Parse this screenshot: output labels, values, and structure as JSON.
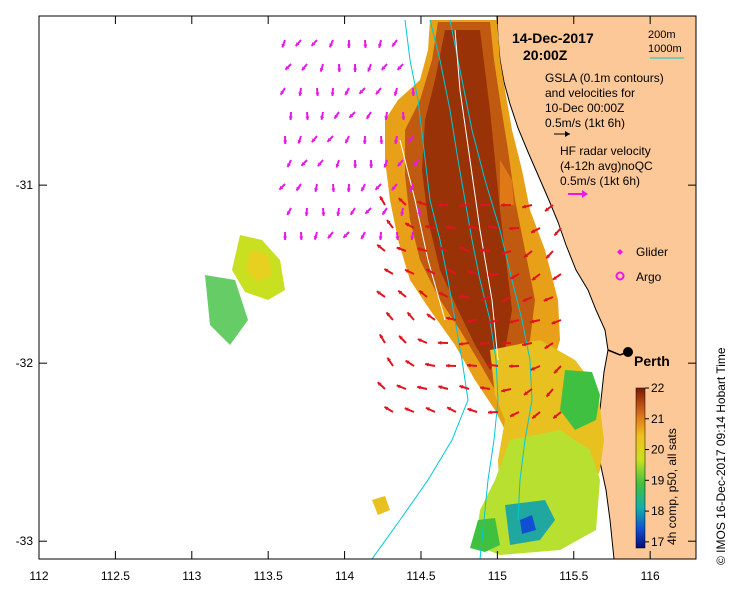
{
  "map": {
    "date_line": "14-Dec-2017",
    "time_line": "20:00Z",
    "depth_legend": {
      "line1": "200m",
      "line2": "1000m"
    },
    "gsla_note": {
      "line1": "GSLA (0.1m contours)",
      "line2": "and velocities for",
      "line3": "10-Dec 00:00Z",
      "line4": "0.5m/s (1kt 6h)"
    },
    "radar_note": {
      "line1": "HF radar velocity",
      "line2": "(4-12h avg)noQC",
      "line3": "0.5m/s (1kt 6h)"
    },
    "legend_items": {
      "glider": "Glider",
      "argo": "Argo"
    },
    "city_label": "Perth",
    "colorbar": {
      "label": "4h comp, p50, all sats",
      "ticks": [
        "22",
        "21",
        "20",
        "19",
        "18",
        "17"
      ],
      "min": 16.8,
      "max": 22
    },
    "credit": "© IMOS 16-Dec-2017 09:14 Hobart Time",
    "x_ticks": [
      "112",
      "112.5",
      "113",
      "113.5",
      "114",
      "114.5",
      "115",
      "115.5",
      "116"
    ],
    "y_ticks": [
      "-31",
      "-32",
      "-33"
    ],
    "lon_range": [
      112,
      116.3
    ],
    "lat_range": [
      -33.1,
      -30.05
    ],
    "colors": {
      "land": "#fcc898",
      "isobath": "#00c8d8",
      "radar_arrow": "#e0141e",
      "gsla_arrow": "#e619e6",
      "warm": "#8a2a08",
      "mid": "#e8a818",
      "cool": "#b8e020"
    }
  }
}
